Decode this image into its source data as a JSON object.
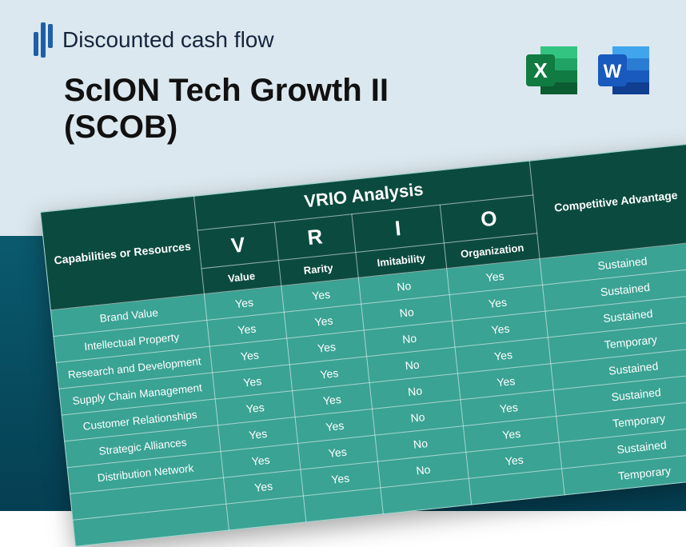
{
  "brand": {
    "text": "Discounted cash flow"
  },
  "title": "ScION Tech Growth II (SCOB)",
  "icons": {
    "excel": {
      "name": "excel-icon",
      "color_dark": "#107c41",
      "color_mid": "#21a366",
      "color_light": "#33c481",
      "letter": "X"
    },
    "word": {
      "name": "word-icon",
      "color_dark": "#185abd",
      "color_mid": "#2b7cd3",
      "color_light": "#41a5ee",
      "letter": "W"
    }
  },
  "table": {
    "type": "table",
    "title": "VRIO Analysis",
    "background_color": "#3aa394",
    "header_color": "#0b4a3f",
    "border_color": "rgba(255,255,255,0.55)",
    "text_color": "#ffffff",
    "columns": {
      "capabilities": "Capabilities or Resources",
      "letters": [
        "V",
        "R",
        "I",
        "O"
      ],
      "subs": [
        "Value",
        "Rarity",
        "Imitability",
        "Organization"
      ],
      "advantage": "Competitive Advantage"
    },
    "rows": [
      {
        "label": "Brand Value",
        "v": "Yes",
        "r": "Yes",
        "i": "No",
        "o": "Yes",
        "adv": "Sustained"
      },
      {
        "label": "Intellectual Property",
        "v": "Yes",
        "r": "Yes",
        "i": "No",
        "o": "Yes",
        "adv": "Sustained"
      },
      {
        "label": "Research and Development",
        "v": "Yes",
        "r": "Yes",
        "i": "No",
        "o": "Yes",
        "adv": "Sustained"
      },
      {
        "label": "Supply Chain Management",
        "v": "Yes",
        "r": "Yes",
        "i": "No",
        "o": "Yes",
        "adv": "Temporary"
      },
      {
        "label": "Customer Relationships",
        "v": "Yes",
        "r": "Yes",
        "i": "No",
        "o": "Yes",
        "adv": "Sustained"
      },
      {
        "label": "Strategic Alliances",
        "v": "Yes",
        "r": "Yes",
        "i": "No",
        "o": "Yes",
        "adv": "Sustained"
      },
      {
        "label": "Distribution Network",
        "v": "Yes",
        "r": "Yes",
        "i": "No",
        "o": "Yes",
        "adv": "Temporary"
      },
      {
        "label": "",
        "v": "Yes",
        "r": "Yes",
        "i": "No",
        "o": "Yes",
        "adv": "Sustained"
      },
      {
        "label": "",
        "v": "",
        "r": "",
        "i": "",
        "o": "",
        "adv": "Temporary"
      }
    ]
  }
}
